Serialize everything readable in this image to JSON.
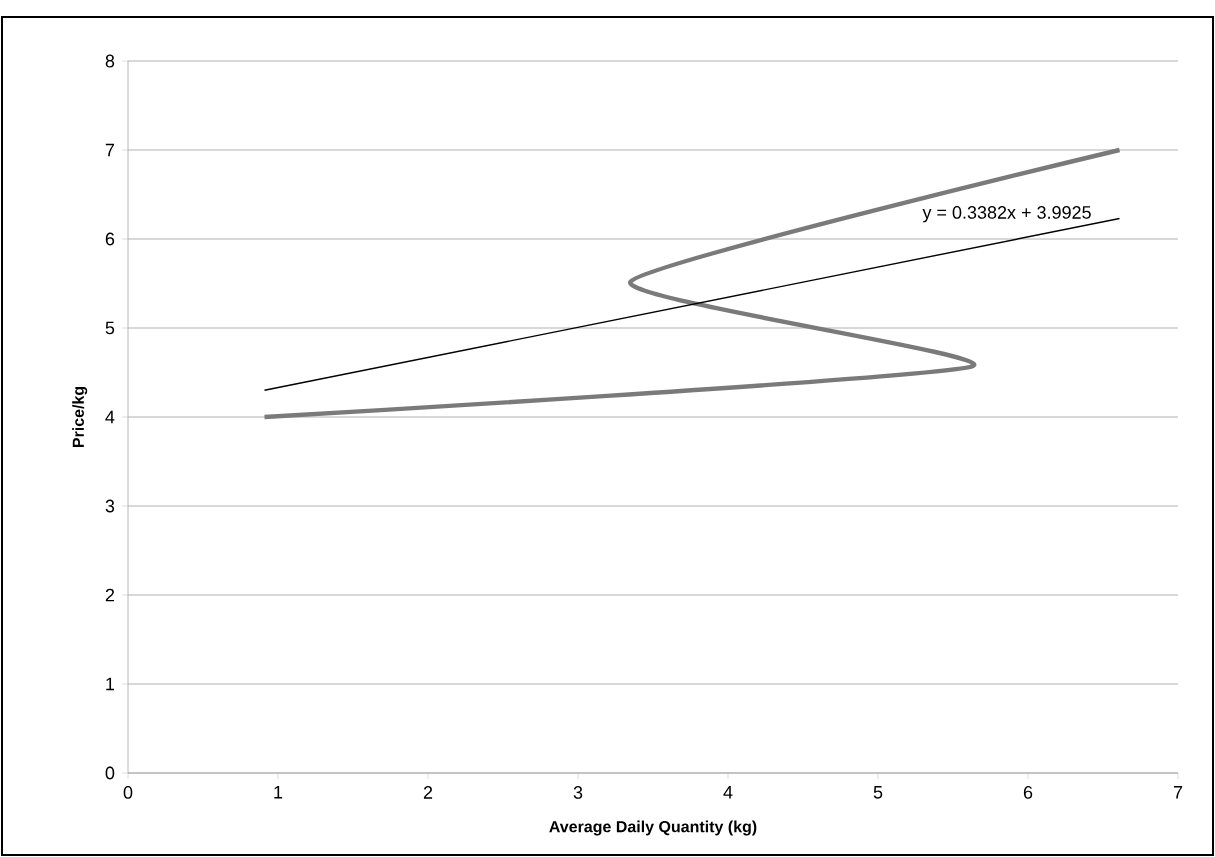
{
  "chart_data": {
    "type": "line",
    "xlabel": "Average Daily Quantity (kg)",
    "ylabel": "Price/kg",
    "xlim": [
      0,
      7
    ],
    "ylim": [
      0,
      8
    ],
    "xticks": [
      0,
      1,
      2,
      3,
      4,
      5,
      6,
      7
    ],
    "yticks": [
      0,
      1,
      2,
      3,
      4,
      5,
      6,
      7,
      8
    ],
    "grid": "y",
    "marker": "none",
    "line_style": "solid",
    "series": [
      {
        "color": "#7a7a7a",
        "x": [
          0.91,
          5.63,
          3.35,
          6.61
        ],
        "values": [
          4.0,
          4.57,
          5.52,
          7.0
        ]
      },
      {
        "type": "line",
        "color": "#000000",
        "x": [
          0.91,
          6.61
        ],
        "values": [
          4.3,
          6.23
        ]
      }
    ],
    "annotations": [
      "y = 0.3382x + 3.9925"
    ]
  }
}
